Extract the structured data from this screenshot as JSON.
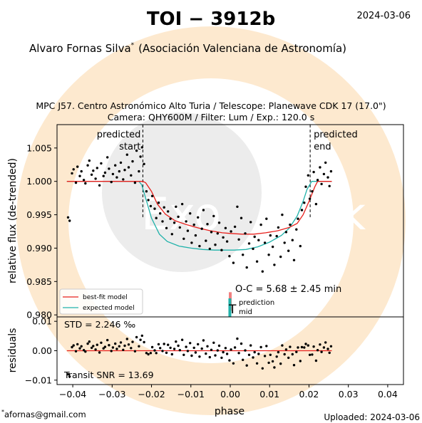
{
  "header": {
    "title": "TOI − 3912b",
    "date": "2024-03-06",
    "author": "Alvaro Fornas Silva",
    "author_mark": "*",
    "affiliation": "(Asociación Valenciana de Astronomía)"
  },
  "observation": {
    "line1": "MPC J57. Centro Astronómico Alto Turia / Telescope: Planewave CDK 17 (17.0\")",
    "line2": "Camera: QHY600M / Filter: Lum / Exp.: 120.0 s"
  },
  "footer": {
    "email": "afornas@gmail.com",
    "email_mark": "*",
    "uploaded": "Uploaded: 2024-03-06"
  },
  "watermark": {
    "text_left": "Exo",
    "text_right": "lock"
  },
  "chart_data": [
    {
      "type": "scatter",
      "panel": "light-curve",
      "ylabel": "relative flux (de-trended)",
      "xlim": [
        -0.044,
        0.044
      ],
      "ylim": [
        0.9797,
        1.0085
      ],
      "yticks": [
        0.98,
        0.985,
        0.99,
        0.995,
        1.0,
        1.005
      ],
      "ytick_labels": [
        "0.980",
        "0.985",
        "0.990",
        "0.995",
        "1.000",
        "1.005"
      ],
      "predicted_start": {
        "x": -0.0222,
        "label": [
          "predicted",
          "start"
        ]
      },
      "predicted_end": {
        "x": 0.0203,
        "label": [
          "predicted",
          "end"
        ]
      },
      "legend": {
        "position": "lower-left",
        "entries": [
          {
            "name": "best-fit model",
            "color": "#e8201c"
          },
          {
            "name": "expected model",
            "color": "#20b2aa"
          }
        ]
      },
      "oc_annotation": "O-C = 5.68 ± 2.45 min",
      "oc_bar": {
        "x": -0.0,
        "y": [
          0.9806,
          0.9834
        ],
        "color": "#f08080"
      },
      "tmid_bar": {
        "x": -0.0001,
        "y": [
          0.9778,
          0.9806
        ],
        "color": "#20b2aa"
      },
      "tmid_label": {
        "T": "T",
        "sup": "prediction",
        "sub": "mid"
      },
      "models": {
        "best_fit": {
          "color": "#e8201c",
          "x": [
            -0.0415,
            -0.0222,
            -0.0215,
            -0.02,
            -0.0185,
            -0.0165,
            -0.014,
            -0.011,
            -0.008,
            -0.005,
            -0.002,
            0.0,
            0.003,
            0.006,
            0.009,
            0.012,
            0.015,
            0.017,
            0.0185,
            0.02,
            0.0215,
            0.0222,
            0.0258
          ],
          "y": [
            1.0,
            1.0,
            0.9998,
            0.9985,
            0.9966,
            0.9951,
            0.9941,
            0.9935,
            0.993,
            0.9926,
            0.9923,
            0.9922,
            0.9921,
            0.9921,
            0.9923,
            0.9926,
            0.9931,
            0.9937,
            0.995,
            0.997,
            0.9992,
            1.0,
            1.0
          ]
        },
        "expected": {
          "color": "#20b2aa",
          "x": [
            -0.0415,
            -0.0232,
            -0.0225,
            -0.0215,
            -0.02,
            -0.018,
            -0.016,
            -0.013,
            -0.01,
            -0.007,
            -0.004,
            -0.001,
            0.001,
            0.004,
            0.007,
            0.01,
            0.013,
            0.015,
            0.017,
            0.0185,
            0.0195,
            0.0207,
            0.0258
          ],
          "y": [
            1.0,
            1.0,
            0.9995,
            0.9975,
            0.9945,
            0.9921,
            0.991,
            0.9903,
            0.99,
            0.9898,
            0.9897,
            0.9897,
            0.9897,
            0.9898,
            0.9902,
            0.9909,
            0.9919,
            0.993,
            0.9948,
            0.997,
            0.9988,
            1.0,
            1.0
          ]
        }
      },
      "points": {
        "x": [
          -0.0412,
          -0.0408,
          -0.0402,
          -0.0398,
          -0.0392,
          -0.0388,
          -0.0382,
          -0.0378,
          -0.0372,
          -0.0368,
          -0.0362,
          -0.0358,
          -0.0352,
          -0.0348,
          -0.0342,
          -0.0338,
          -0.0332,
          -0.0328,
          -0.0322,
          -0.0318,
          -0.0312,
          -0.0308,
          -0.0302,
          -0.0298,
          -0.0292,
          -0.0288,
          -0.0282,
          -0.0278,
          -0.0272,
          -0.0268,
          -0.0262,
          -0.0258,
          -0.0252,
          -0.0248,
          -0.0242,
          -0.0238,
          -0.0232,
          -0.0228,
          -0.0224,
          -0.0219,
          -0.0213,
          -0.0208,
          -0.0202,
          -0.0198,
          -0.0192,
          -0.0188,
          -0.0182,
          -0.0178,
          -0.0172,
          -0.0168,
          -0.0162,
          -0.0158,
          -0.0152,
          -0.0148,
          -0.0142,
          -0.0138,
          -0.0132,
          -0.0128,
          -0.0122,
          -0.0118,
          -0.0112,
          -0.0108,
          -0.0102,
          -0.0098,
          -0.0092,
          -0.0088,
          -0.0082,
          -0.0078,
          -0.0072,
          -0.0068,
          -0.0062,
          -0.0058,
          -0.0052,
          -0.0048,
          -0.0042,
          -0.0038,
          -0.0032,
          -0.0028,
          -0.0022,
          -0.0018,
          -0.0012,
          -0.0008,
          -0.0002,
          0.0002,
          0.0008,
          0.0012,
          0.0018,
          0.0022,
          0.0028,
          0.0032,
          0.0038,
          0.0042,
          0.0048,
          0.0052,
          0.0058,
          0.0062,
          0.0068,
          0.0072,
          0.0078,
          0.0082,
          0.0088,
          0.0092,
          0.0098,
          0.0102,
          0.0108,
          0.0112,
          0.0118,
          0.0122,
          0.0128,
          0.0132,
          0.0138,
          0.0142,
          0.0148,
          0.0152,
          0.0158,
          0.0162,
          0.0168,
          0.0172,
          0.0178,
          0.0182,
          0.0188,
          0.0192,
          0.0198,
          0.0202,
          0.0208,
          0.0212,
          0.0218,
          0.0222,
          0.0228,
          0.0232,
          0.0238,
          0.0242,
          0.0248,
          0.0252,
          0.0256
        ],
        "y": [
          0.9946,
          0.9941,
          1.0012,
          1.0018,
          0.9998,
          1.0022,
          1.0008,
          1.0015,
          1.0002,
          0.9997,
          1.0024,
          1.0031,
          1.001,
          1.0016,
          1.0004,
          1.002,
          0.9994,
          1.0027,
          1.0008,
          1.0013,
          1.0036,
          1.0019,
          0.9999,
          1.0011,
          1.0024,
          1.0006,
          1.0015,
          1.0028,
          1.0003,
          1.0017,
          1.004,
          1.0021,
          1.0009,
          1.003,
          0.9998,
          1.0046,
          1.0015,
          1.0037,
          1.0051,
          1.0026,
          0.9985,
          0.9972,
          0.9963,
          0.9978,
          0.9959,
          0.9945,
          0.9968,
          0.9952,
          0.994,
          0.9961,
          0.993,
          0.9955,
          0.9944,
          0.9921,
          0.9938,
          0.9962,
          0.9947,
          0.9931,
          0.9966,
          0.9914,
          0.994,
          0.9926,
          0.9952,
          0.9908,
          0.9935,
          0.9919,
          0.9946,
          0.9903,
          0.9929,
          0.9957,
          0.9911,
          0.9936,
          0.9899,
          0.9924,
          0.9948,
          0.9905,
          0.9922,
          0.9938,
          0.9897,
          0.9916,
          0.993,
          0.991,
          0.9888,
          0.9925,
          0.9878,
          0.9932,
          0.9962,
          0.9913,
          0.9945,
          0.989,
          0.9922,
          0.9871,
          0.9907,
          0.9939,
          0.9899,
          0.9917,
          0.988,
          0.9912,
          0.9935,
          0.9865,
          0.9908,
          0.9944,
          0.989,
          0.9919,
          0.9902,
          0.9875,
          0.9918,
          0.9931,
          0.9887,
          0.995,
          0.9908,
          0.9924,
          0.9896,
          0.9935,
          0.9912,
          0.9882,
          0.9928,
          0.9944,
          0.9903,
          0.9957,
          0.9968,
          0.9992,
          1.0009,
          0.9974,
          0.9985,
          1.0014,
          0.9966,
          1.0002,
          1.0021,
          0.9996,
          1.0011,
          1.0028,
          1.0006,
          0.9993,
          1.0015
        ]
      }
    },
    {
      "type": "scatter",
      "panel": "residuals",
      "ylabel": "residuals",
      "xlabel": "phase",
      "xlim": [
        -0.044,
        0.044
      ],
      "ylim": [
        -0.0115,
        0.0115
      ],
      "yticks": [
        -0.01,
        0.0,
        0.01
      ],
      "ytick_labels": [
        "−0.01",
        "0.00",
        "0.01"
      ],
      "xticks": [
        -0.04,
        -0.03,
        -0.02,
        -0.01,
        0.0,
        0.01,
        0.02,
        0.03,
        0.04
      ],
      "xtick_labels": [
        "−0.04",
        "−0.03",
        "−0.02",
        "−0.01",
        "0.00",
        "0.01",
        "0.02",
        "0.03",
        "0.04"
      ],
      "std_label": "STD = 2.246 ‰",
      "snr_label": "Transit SNR = 13.69",
      "zero_line": {
        "x": [
          -0.0415,
          0.0258
        ],
        "color": "#e8201c"
      },
      "points": {
        "x": [
          -0.0412,
          -0.0408,
          -0.0402,
          -0.0398,
          -0.0392,
          -0.0388,
          -0.0382,
          -0.0378,
          -0.0372,
          -0.0368,
          -0.0362,
          -0.0358,
          -0.0352,
          -0.0348,
          -0.0342,
          -0.0338,
          -0.0332,
          -0.0328,
          -0.0322,
          -0.0318,
          -0.0312,
          -0.0308,
          -0.0302,
          -0.0298,
          -0.0292,
          -0.0288,
          -0.0282,
          -0.0278,
          -0.0272,
          -0.0268,
          -0.0262,
          -0.0258,
          -0.0252,
          -0.0248,
          -0.0242,
          -0.0238,
          -0.0232,
          -0.0228,
          -0.0224,
          -0.0219,
          -0.0213,
          -0.0208,
          -0.0202,
          -0.0198,
          -0.0192,
          -0.0188,
          -0.0182,
          -0.0178,
          -0.0172,
          -0.0168,
          -0.0162,
          -0.0158,
          -0.0152,
          -0.0148,
          -0.0142,
          -0.0138,
          -0.0132,
          -0.0128,
          -0.0122,
          -0.0118,
          -0.0112,
          -0.0108,
          -0.0102,
          -0.0098,
          -0.0092,
          -0.0088,
          -0.0082,
          -0.0078,
          -0.0072,
          -0.0068,
          -0.0062,
          -0.0058,
          -0.0052,
          -0.0048,
          -0.0042,
          -0.0038,
          -0.0032,
          -0.0028,
          -0.0022,
          -0.0018,
          -0.0012,
          -0.0008,
          -0.0002,
          0.0002,
          0.0008,
          0.0012,
          0.0018,
          0.0022,
          0.0028,
          0.0032,
          0.0038,
          0.0042,
          0.0048,
          0.0052,
          0.0058,
          0.0062,
          0.0068,
          0.0072,
          0.0078,
          0.0082,
          0.0088,
          0.0092,
          0.0098,
          0.0102,
          0.0108,
          0.0112,
          0.0118,
          0.0122,
          0.0128,
          0.0132,
          0.0138,
          0.0142,
          0.0148,
          0.0152,
          0.0158,
          0.0162,
          0.0168,
          0.0172,
          0.0178,
          0.0182,
          0.0188,
          0.0192,
          0.0198,
          0.0202,
          0.0208,
          0.0212,
          0.0218,
          0.0222,
          0.0228,
          0.0232,
          0.0238,
          0.0242,
          0.0248,
          0.0252,
          0.0256
        ],
        "y": [
          -0.008,
          -0.0088,
          0.0012,
          0.0018,
          -0.0002,
          0.0022,
          0.0008,
          0.0015,
          0.0002,
          -0.0003,
          0.0024,
          0.0031,
          0.001,
          0.0016,
          0.0004,
          0.002,
          -0.0006,
          0.0027,
          0.0008,
          0.0013,
          0.0036,
          0.0019,
          -0.0001,
          0.0011,
          0.0024,
          0.0006,
          0.0015,
          0.0028,
          0.0003,
          0.0017,
          0.004,
          0.0021,
          0.0009,
          0.003,
          -0.0002,
          0.0046,
          0.0015,
          0.0037,
          0.0051,
          0.0029,
          -0.0008,
          -0.0012,
          -0.0008,
          0.0012,
          0.0001,
          -0.0008,
          0.0022,
          0.0009,
          -0.0001,
          0.0023,
          -0.0007,
          0.002,
          0.001,
          -0.0012,
          0.0006,
          0.0031,
          0.0017,
          0.0002,
          0.0037,
          -0.0014,
          0.0013,
          -0.0001,
          0.0026,
          -0.0017,
          0.001,
          -0.0006,
          0.0022,
          -0.002,
          0.0007,
          0.0035,
          -0.001,
          0.0015,
          -0.0022,
          0.0003,
          0.0027,
          -0.0016,
          0.0001,
          0.0017,
          -0.0024,
          -0.0005,
          0.0009,
          -0.0011,
          -0.0033,
          0.0004,
          -0.0043,
          0.0011,
          0.0041,
          -0.0008,
          0.0024,
          -0.0031,
          0.0001,
          -0.005,
          -0.0014,
          0.0018,
          -0.0023,
          -0.0005,
          -0.0043,
          -0.0011,
          0.0012,
          -0.006,
          -0.0018,
          0.0016,
          -0.0041,
          -0.0014,
          -0.0036,
          -0.0057,
          -0.002,
          -0.0005,
          -0.0044,
          0.0018,
          -0.0012,
          0.0004,
          -0.0024,
          0.0013,
          -0.0012,
          -0.0049,
          -0.0004,
          0.0011,
          -0.0035,
          0.0012,
          0.0011,
          0.0023,
          0.0018,
          -0.0014,
          -0.0013,
          0.0014,
          -0.0034,
          0.0002,
          0.0021,
          -0.0004,
          0.0011,
          0.0028,
          0.0006,
          -0.0007,
          0.0015
        ]
      }
    }
  ]
}
